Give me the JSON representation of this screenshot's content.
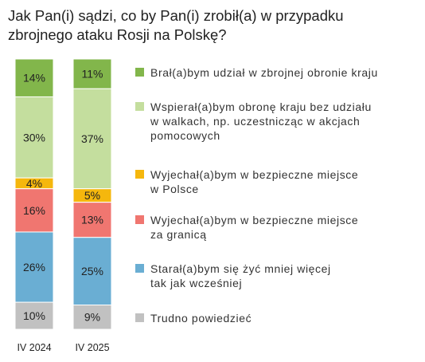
{
  "chart_data": {
    "type": "stacked-bar",
    "title": "Jak Pan(i) sądzi, co by Pan(i) zrobił(a) w przypadku\nzbrojnego ataku Rosji na Polskę?",
    "categories": [
      "IV 2024",
      "IV 2025"
    ],
    "series": [
      {
        "name": "Brał(a)bym udział w zbrojnej obronie kraju",
        "color": "#82b64b",
        "values": [
          14,
          11
        ]
      },
      {
        "name": "Wspierał(a)bym obronę kraju bez udziału\nw walkach, np. uczestnicząc w akcjach\npomocowych",
        "color": "#c4de9e",
        "values": [
          30,
          37
        ]
      },
      {
        "name": "Wyjechał(a)bym w bezpieczne miejsce\nw Polsce",
        "color": "#f5b70d",
        "values": [
          4,
          5
        ]
      },
      {
        "name": "Wyjechał(a)bym w bezpieczne miejsce\nza granicą",
        "color": "#f07670",
        "values": [
          16,
          13
        ]
      },
      {
        "name": "Starał(a)bym się żyć mniej więcej\ntak jak wcześniej",
        "color": "#6aaed3",
        "values": [
          26,
          25
        ]
      },
      {
        "name": "Trudno powiedzieć",
        "color": "#c1c1c1",
        "values": [
          10,
          9
        ]
      }
    ],
    "value_suffix": "%",
    "ylim": [
      0,
      100
    ],
    "grid": false,
    "legend_position": "right"
  }
}
